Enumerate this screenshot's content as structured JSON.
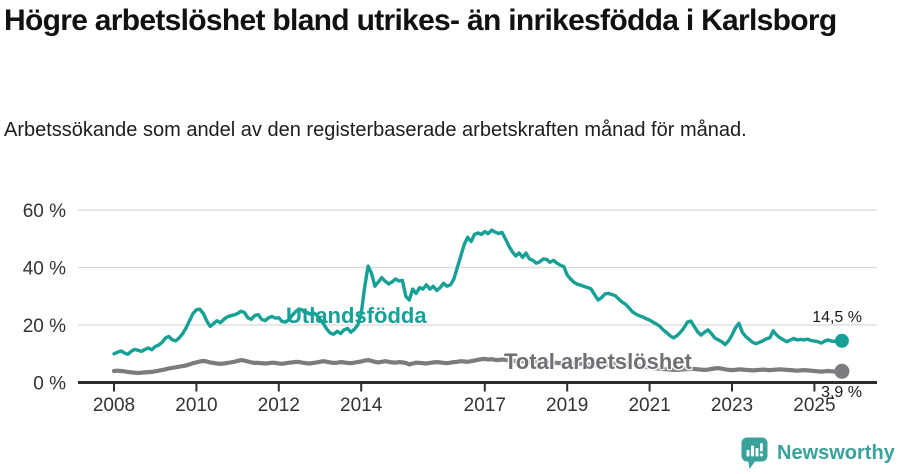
{
  "header": {
    "title": "Högre arbetslöshet bland utrikes- än inrikesfödda i Karlsborg",
    "subtitle": "Arbetssökande som andel av den registerbaserade arbetskraften månad för månad."
  },
  "branding": {
    "logo_text": "Newsworthy",
    "logo_color": "#3aa19b",
    "logo_icon": "bar-chart-speech-bubble-icon"
  },
  "chart_data": {
    "type": "line",
    "unit": "%",
    "x_start": "2008-01",
    "x_end": "2025-09",
    "x_frequency": "monthly",
    "x_tick_years": [
      2008,
      2010,
      2012,
      2014,
      2017,
      2019,
      2021,
      2023,
      2025
    ],
    "x_tick_labels": [
      "2008",
      "2010",
      "2012",
      "2014",
      "2017",
      "2019",
      "2021",
      "2023",
      "2025"
    ],
    "y_ticks": [
      0,
      20,
      40,
      60
    ],
    "y_tick_labels": [
      "0 %",
      "20 %",
      "40 %",
      "60 %"
    ],
    "ylim": [
      0,
      62
    ],
    "grid": "horizontal",
    "legend_position": "inline-labels",
    "series": [
      {
        "name": "Utlandsfödda",
        "color": "#16a096",
        "end_label": "14,5 %",
        "end_value": 14.5,
        "values": [
          10.0,
          10.5,
          11.0,
          10.3,
          9.8,
          10.8,
          11.5,
          11.2,
          10.8,
          11.5,
          12.0,
          11.4,
          12.5,
          13.0,
          14.0,
          15.5,
          16.0,
          14.8,
          14.5,
          15.5,
          17.0,
          19.0,
          21.5,
          24.0,
          25.3,
          25.5,
          24.0,
          21.5,
          19.5,
          20.5,
          21.5,
          20.8,
          22.0,
          22.8,
          23.2,
          23.5,
          24.0,
          24.8,
          24.3,
          22.5,
          22.0,
          23.3,
          23.6,
          22.0,
          21.5,
          22.5,
          23.0,
          22.4,
          22.5,
          21.2,
          21.0,
          22.0,
          23.5,
          24.8,
          25.5,
          25.2,
          24.5,
          23.8,
          24.3,
          23.5,
          22.0,
          20.5,
          18.5,
          17.2,
          16.8,
          17.8,
          17.0,
          18.3,
          18.8,
          17.5,
          18.5,
          20.0,
          24.0,
          33.0,
          40.5,
          38.0,
          33.5,
          35.0,
          36.5,
          35.2,
          34.3,
          35.0,
          36.0,
          35.3,
          35.5,
          30.0,
          28.7,
          32.5,
          31.0,
          33.0,
          32.5,
          34.0,
          32.5,
          33.5,
          32.0,
          33.0,
          34.5,
          33.5,
          34.0,
          36.0,
          40.0,
          44.0,
          48.0,
          50.5,
          49.0,
          51.5,
          52.0,
          51.5,
          52.5,
          51.8,
          53.0,
          52.3,
          51.8,
          52.2,
          50.0,
          47.5,
          45.5,
          44.0,
          45.0,
          43.5,
          45.0,
          43.0,
          42.5,
          41.5,
          42.0,
          43.0,
          42.8,
          41.8,
          42.5,
          41.5,
          40.8,
          40.3,
          37.4,
          36.0,
          34.8,
          34.2,
          33.8,
          33.4,
          33.0,
          32.5,
          30.5,
          28.7,
          29.5,
          30.8,
          31.0,
          30.6,
          30.2,
          29.0,
          28.0,
          27.2,
          26.0,
          24.6,
          23.8,
          23.2,
          22.8,
          22.2,
          21.7,
          21.0,
          20.3,
          19.5,
          18.3,
          17.3,
          16.2,
          15.5,
          16.3,
          17.5,
          19.0,
          21.0,
          21.4,
          19.5,
          17.6,
          16.5,
          17.5,
          18.3,
          17.0,
          15.5,
          14.8,
          14.2,
          13.2,
          14.5,
          16.5,
          19.0,
          20.6,
          17.5,
          16.0,
          15.0,
          14.0,
          13.5,
          14.0,
          14.5,
          15.2,
          15.5,
          18.0,
          16.5,
          15.5,
          14.8,
          14.2,
          14.8,
          15.3,
          14.8,
          15.0,
          14.8,
          15.1,
          14.6,
          14.4,
          14.2,
          13.7,
          14.4,
          14.8,
          14.4,
          14.3,
          14.6,
          14.5
        ]
      },
      {
        "name": "Total arbetslöshet",
        "color": "#7c7c80",
        "end_label": "3,9 %",
        "end_value": 3.9,
        "values": [
          4.0,
          4.1,
          4.0,
          3.9,
          3.7,
          3.5,
          3.4,
          3.3,
          3.4,
          3.5,
          3.6,
          3.7,
          3.9,
          4.1,
          4.4,
          4.6,
          4.9,
          5.1,
          5.3,
          5.5,
          5.7,
          5.9,
          6.3,
          6.7,
          7.0,
          7.3,
          7.5,
          7.3,
          7.0,
          6.8,
          6.6,
          6.5,
          6.6,
          6.8,
          7.0,
          7.2,
          7.5,
          7.8,
          7.6,
          7.3,
          7.0,
          6.8,
          6.8,
          6.7,
          6.6,
          6.7,
          6.9,
          6.8,
          6.6,
          6.5,
          6.7,
          6.9,
          7.0,
          7.2,
          7.1,
          6.9,
          6.7,
          6.6,
          6.8,
          7.0,
          7.2,
          7.4,
          7.2,
          7.0,
          6.8,
          6.9,
          7.1,
          7.0,
          6.8,
          6.7,
          6.9,
          7.1,
          7.3,
          7.6,
          7.8,
          7.5,
          7.2,
          7.0,
          7.2,
          7.4,
          7.2,
          7.0,
          6.9,
          7.1,
          7.0,
          6.8,
          6.3,
          6.6,
          6.9,
          6.8,
          6.7,
          6.6,
          6.8,
          7.0,
          7.1,
          7.0,
          6.8,
          6.7,
          6.9,
          7.1,
          7.2,
          7.4,
          7.3,
          7.2,
          7.4,
          7.6,
          7.9,
          8.1,
          8.2,
          8.0,
          8.1,
          7.9,
          7.8,
          8.0,
          7.9,
          7.7,
          7.5,
          7.4,
          7.5,
          7.4,
          7.3,
          7.2,
          7.4,
          7.3,
          7.1,
          7.0,
          7.2,
          7.1,
          6.9,
          6.8,
          6.7,
          6.8,
          6.9,
          6.8,
          6.7,
          6.6,
          6.5,
          6.4,
          6.3,
          6.2,
          6.1,
          6.0,
          6.0,
          6.1,
          6.3,
          6.4,
          6.6,
          6.7,
          6.6,
          6.5,
          6.4,
          6.2,
          6.0,
          5.8,
          5.6,
          5.4,
          5.2,
          5.0,
          4.9,
          4.8,
          4.7,
          4.6,
          4.5,
          4.4,
          4.4,
          4.5,
          4.6,
          4.7,
          4.8,
          4.7,
          4.6,
          4.5,
          4.4,
          4.5,
          4.7,
          4.9,
          5.0,
          4.8,
          4.6,
          4.4,
          4.3,
          4.4,
          4.6,
          4.5,
          4.4,
          4.3,
          4.2,
          4.3,
          4.4,
          4.5,
          4.4,
          4.3,
          4.4,
          4.5,
          4.6,
          4.5,
          4.4,
          4.3,
          4.2,
          4.1,
          4.2,
          4.3,
          4.2,
          4.1,
          4.0,
          3.9,
          3.8,
          3.9,
          4.0,
          3.9,
          3.8,
          3.9,
          3.9
        ]
      }
    ]
  }
}
